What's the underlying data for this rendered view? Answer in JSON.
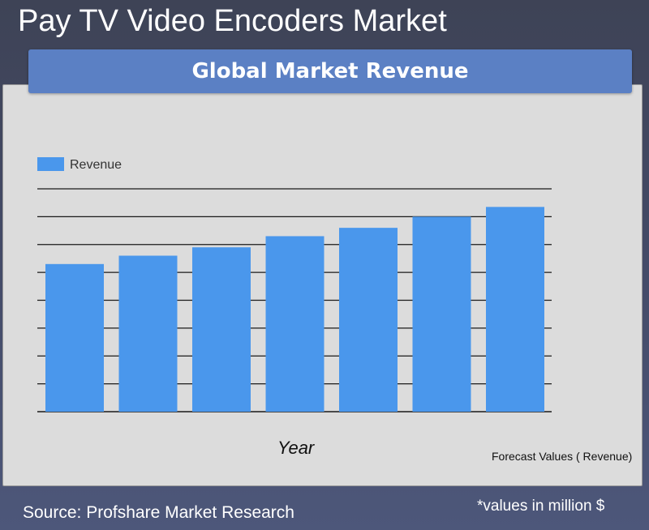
{
  "header": {
    "title": "Pay TV Video Encoders Market",
    "banner": "Global Market Revenue"
  },
  "footer": {
    "source": "Source: Profshare Market Research",
    "units_note": "*values in million $",
    "forecast_note": "Forecast Values ( Revenue)"
  },
  "colors": {
    "bar": "#4a97ec",
    "gridline": "#1a1a1a",
    "panel": "#dcdcdc",
    "banner": "#5b80c4"
  },
  "chart_data": {
    "type": "bar",
    "title": "Global Market Revenue",
    "xlabel": "Year",
    "ylabel": "",
    "categories": [
      "",
      "",
      "",
      "",
      "",
      "",
      ""
    ],
    "series": [
      {
        "name": "Revenue",
        "values": [
          5.3,
          5.6,
          5.9,
          6.3,
          6.6,
          7.0,
          7.35
        ]
      }
    ],
    "ylim": [
      0,
      8
    ],
    "gridlines": 9,
    "grid": true,
    "legend": "top-left"
  }
}
